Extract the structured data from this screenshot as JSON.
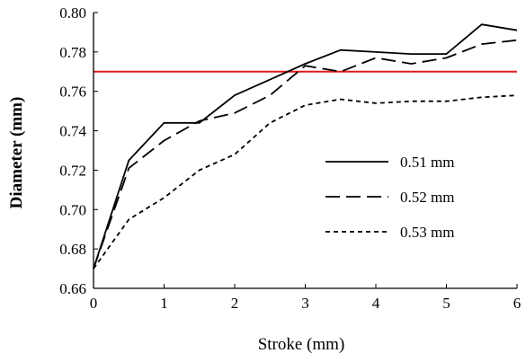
{
  "chart_data": {
    "type": "line",
    "title": "",
    "xlabel": "Stroke (mm)",
    "ylabel": "Diameter (mm)",
    "xlim": [
      0,
      6
    ],
    "ylim": [
      0.66,
      0.8
    ],
    "x_ticks": [
      "0",
      "1",
      "2",
      "3",
      "4",
      "5",
      "6"
    ],
    "y_ticks": [
      "0.66",
      "0.68",
      "0.70",
      "0.72",
      "0.74",
      "0.76",
      "0.78",
      "0.80"
    ],
    "grid": false,
    "legend_position": "right",
    "x": [
      0,
      0.5,
      1,
      1.5,
      2,
      2.5,
      3,
      3.5,
      4,
      4.5,
      5,
      5.5,
      6
    ],
    "series": [
      {
        "name": "0.51 mm",
        "style": "solid",
        "color": "#000000",
        "values": [
          0.67,
          0.725,
          0.744,
          0.744,
          0.758,
          0.766,
          0.774,
          0.781,
          0.78,
          0.779,
          0.779,
          0.794,
          0.791
        ]
      },
      {
        "name": "0.52 mm",
        "style": "long-dash",
        "color": "#000000",
        "values": [
          0.67,
          0.721,
          0.735,
          0.745,
          0.749,
          0.758,
          0.773,
          0.77,
          0.777,
          0.774,
          0.777,
          0.784,
          0.786
        ]
      },
      {
        "name": "0.53 mm",
        "style": "short-dash",
        "color": "#000000",
        "values": [
          0.67,
          0.695,
          0.706,
          0.72,
          0.728,
          0.744,
          0.753,
          0.756,
          0.754,
          0.755,
          0.755,
          0.757,
          0.758
        ]
      }
    ],
    "reference_line": {
      "y": 0.77,
      "color": "#e31a1c"
    }
  }
}
